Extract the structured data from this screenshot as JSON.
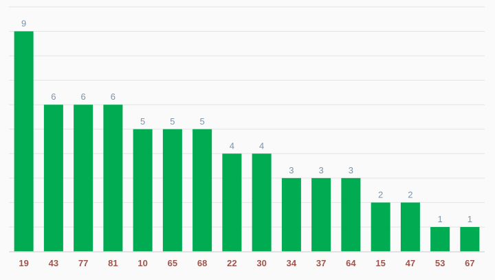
{
  "chart_data": {
    "type": "bar",
    "title": "",
    "xlabel": "",
    "ylabel": "",
    "categories": [
      "19",
      "43",
      "77",
      "81",
      "10",
      "65",
      "68",
      "22",
      "30",
      "34",
      "37",
      "64",
      "15",
      "47",
      "53",
      "67"
    ],
    "values": [
      9,
      6,
      6,
      6,
      5,
      5,
      5,
      4,
      4,
      3,
      3,
      3,
      2,
      2,
      1,
      1
    ],
    "value_labels": [
      "9",
      "6",
      "6",
      "6",
      "5",
      "5",
      "5",
      "4",
      "4",
      "3",
      "3",
      "3",
      "2",
      "2",
      "1",
      "1"
    ],
    "ylim": [
      0,
      10
    ],
    "gridline_step": 1,
    "grid": true,
    "legend": "none",
    "y_axis_tick_labels_visible": false,
    "colors": {
      "bar": "#00ab51",
      "value_label": "#7e93a8",
      "category_label": "#9e554b",
      "gridline": "#e3e3e3",
      "axis_line": "#d9d9d9",
      "background": "#fafafa"
    }
  }
}
